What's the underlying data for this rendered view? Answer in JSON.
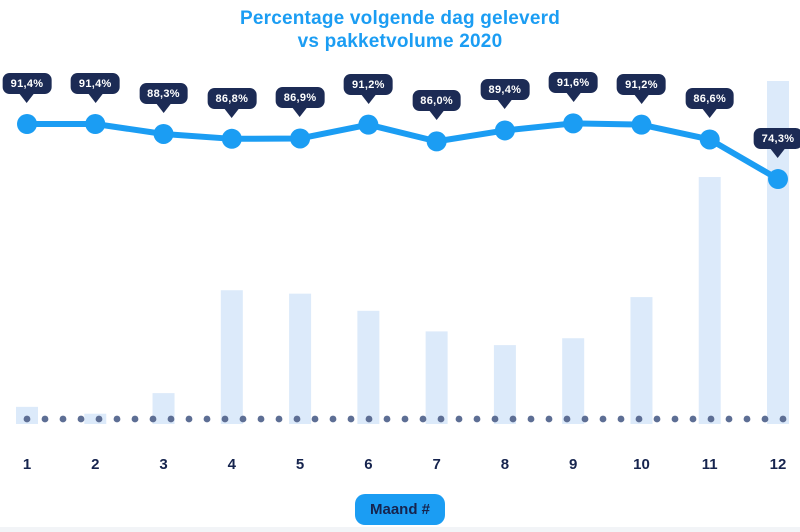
{
  "header": {
    "title_line1": "Percentage volgende dag geleverd",
    "title_line2": "vs pakketvolume 2020"
  },
  "chart_data": {
    "type": "line",
    "subtype": "line-with-bars-combo",
    "title": "Percentage volgende dag geleverd vs pakketvolume 2020",
    "xlabel": "Maand #",
    "xlabel_badge": "Maand #",
    "categories": [
      "1",
      "2",
      "3",
      "4",
      "5",
      "6",
      "7",
      "8",
      "9",
      "10",
      "11",
      "12"
    ],
    "series": [
      {
        "name": "Percentage volgende dag geleverd",
        "type": "line",
        "unit": "%",
        "values": [
          91.4,
          91.4,
          88.3,
          86.8,
          86.9,
          91.2,
          86.0,
          89.4,
          91.6,
          91.2,
          86.6,
          74.3
        ],
        "labels": [
          "91,4%",
          "91,4%",
          "88,3%",
          "86,8%",
          "86,9%",
          "91,2%",
          "86,0%",
          "89,4%",
          "91,6%",
          "91,2%",
          "86,6%",
          "74,3%"
        ]
      },
      {
        "name": "Pakketvolume 2020",
        "type": "bar",
        "unit": "relative-percent-of-max-month",
        "values": [
          5,
          3,
          9,
          39,
          38,
          33,
          27,
          23,
          25,
          37,
          72,
          100
        ]
      }
    ],
    "line_ylim": [
      70,
      95
    ],
    "grid": false,
    "legend": "none",
    "baseline_style": "dotted-row"
  },
  "colors": {
    "accent": "#1B9DF3",
    "badge_navy": "#1C2B55",
    "axis_navy": "#16244E",
    "bar_light_blue": "#DCEAFA",
    "dot_slate": "#5D6E94",
    "bottom_strip": "#F2F4F7",
    "background": "#FFFFFF",
    "badge_text": "#FFFFFF"
  }
}
